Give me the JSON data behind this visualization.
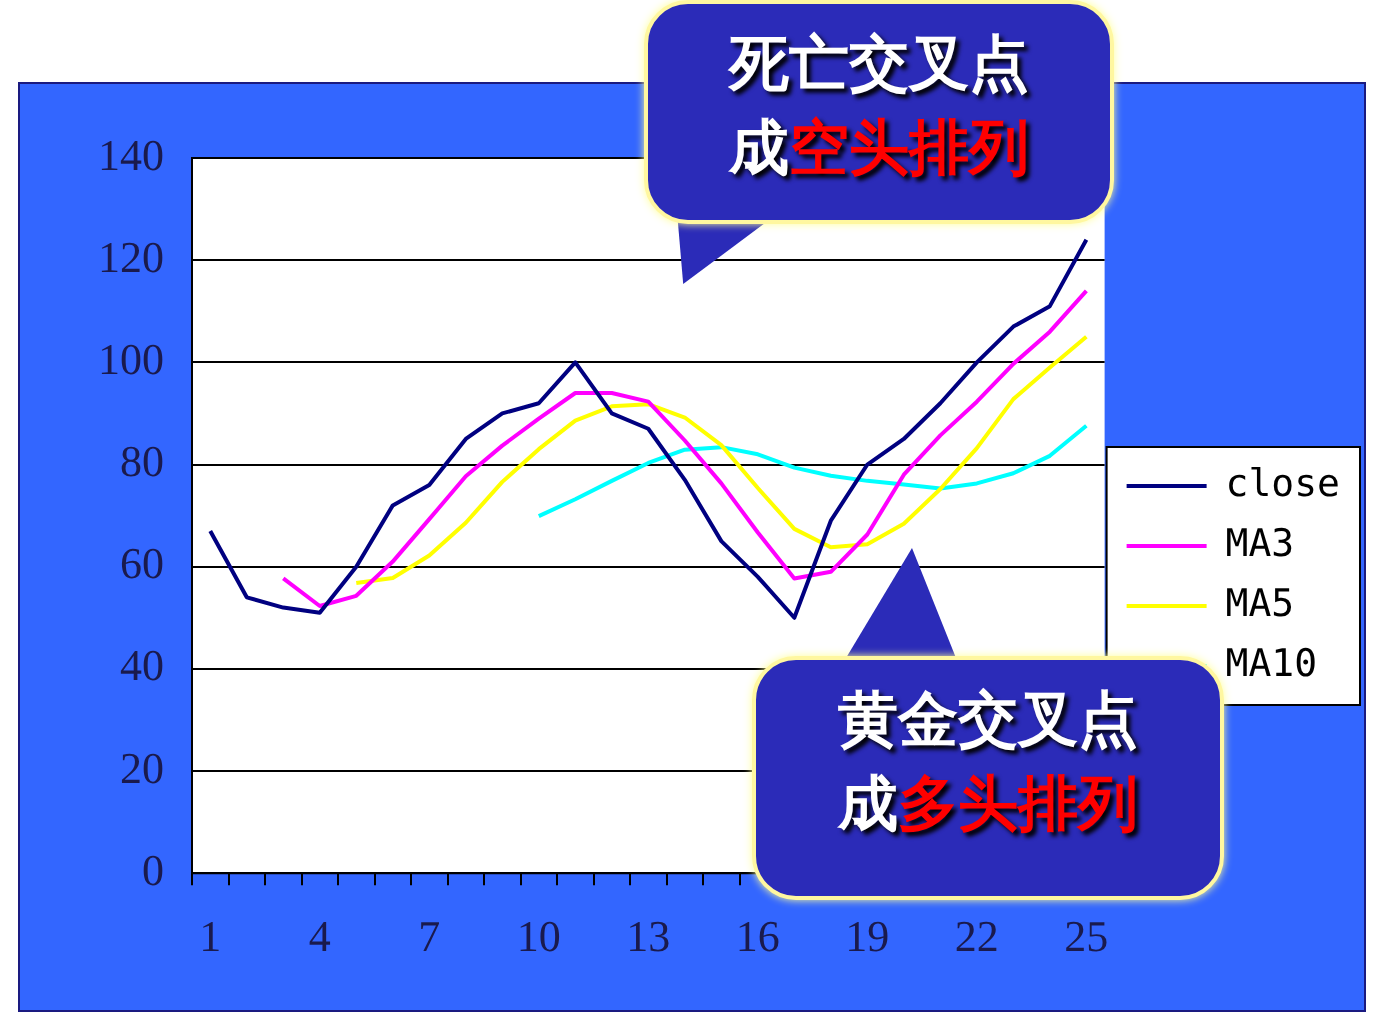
{
  "chart_data": {
    "type": "line",
    "categories": [
      "1",
      null,
      null,
      "4",
      null,
      null,
      "7",
      null,
      null,
      "10",
      null,
      null,
      "13",
      null,
      null,
      "16",
      null,
      null,
      "19",
      null,
      null,
      "22",
      null,
      null,
      "25"
    ],
    "series": [
      {
        "name": "close",
        "color": "#000080",
        "values": [
          67,
          54,
          52,
          51,
          60,
          72,
          76,
          85,
          90,
          92,
          100,
          90,
          87,
          77,
          65,
          58,
          50,
          69,
          80,
          85,
          92,
          100,
          107,
          111,
          124
        ]
      },
      {
        "name": "MA3",
        "color": "#ff00ff",
        "values": [
          null,
          null,
          57.7,
          52.3,
          54.3,
          61,
          69.3,
          77.7,
          83.7,
          89,
          94,
          94,
          92.3,
          84.7,
          76.3,
          66.7,
          57.7,
          59,
          66.3,
          78,
          85.7,
          92.3,
          99.7,
          106,
          114
        ]
      },
      {
        "name": "MA5",
        "color": "#ffff00",
        "values": [
          null,
          null,
          null,
          null,
          56.8,
          57.8,
          62.2,
          68.6,
          76.6,
          83,
          88.6,
          91.4,
          91.8,
          89.2,
          83.8,
          75.4,
          67.4,
          63.8,
          64.4,
          68.4,
          75.2,
          83.2,
          92.8,
          99,
          105
        ]
      },
      {
        "name": "MA10",
        "color": "#00ffff",
        "values": [
          null,
          null,
          null,
          null,
          null,
          null,
          null,
          null,
          null,
          69.9,
          73.2,
          76.8,
          80.3,
          82.9,
          83.4,
          82,
          79.4,
          77.8,
          76.8,
          76.1,
          75.3,
          76.3,
          78.3,
          81.7,
          87.6
        ]
      }
    ],
    "ylim": [
      0,
      140
    ],
    "yticks": [
      0,
      20,
      40,
      60,
      80,
      100,
      120,
      140
    ],
    "grid": "y",
    "legend": "right",
    "marker": "none",
    "line_style": "solid",
    "annotations": [
      "死亡交叉点",
      "成空头排列",
      "黄金交叉点",
      "成多头排列"
    ]
  }
}
